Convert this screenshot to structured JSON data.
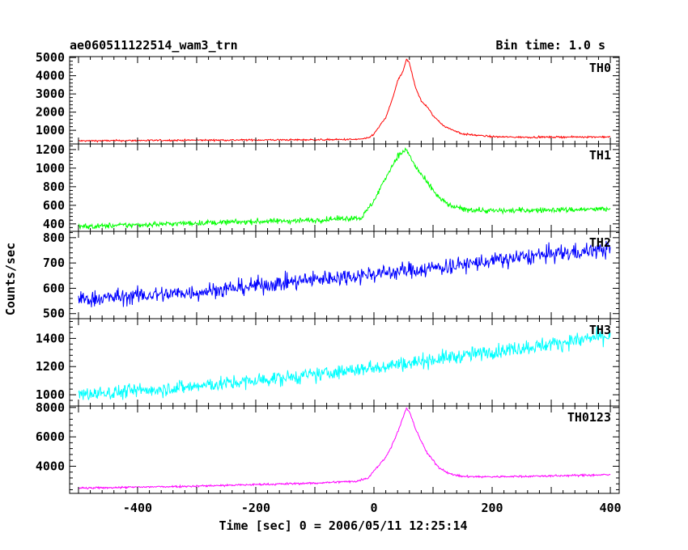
{
  "chart_data": {
    "type": "line",
    "title": "ae060511122514_wam3_trn",
    "bin_time_label": "Bin time: 1.0 s",
    "xlabel": "Time [sec] 0 = 2006/05/11 12:25:14",
    "ylabel": "Counts/sec",
    "xlim": [
      -515,
      415
    ],
    "xticks": [
      -400,
      -200,
      0,
      200,
      400
    ],
    "grid": false,
    "panels": [
      {
        "name": "TH0",
        "color": "#ff0000",
        "ylim": [
          250,
          5050
        ],
        "yticks": [
          1000,
          2000,
          3000,
          4000,
          5000
        ],
        "noise": 40,
        "x": [
          -500,
          -300,
          -100,
          -30,
          -10,
          0,
          20,
          30,
          40,
          50,
          55,
          60,
          70,
          80,
          90,
          100,
          120,
          150,
          200,
          250,
          300,
          400
        ],
        "y": [
          420,
          460,
          480,
          500,
          560,
          800,
          1700,
          2600,
          3700,
          4300,
          4900,
          4700,
          3400,
          2600,
          2300,
          1800,
          1200,
          800,
          650,
          620,
          630,
          640
        ]
      },
      {
        "name": "TH1",
        "color": "#00ff00",
        "ylim": [
          320,
          1260
        ],
        "yticks": [
          400,
          600,
          800,
          1000,
          1200
        ],
        "noise": 25,
        "x": [
          -500,
          -300,
          -100,
          -20,
          0,
          20,
          40,
          55,
          70,
          90,
          110,
          130,
          150,
          200,
          300,
          400
        ],
        "y": [
          370,
          410,
          440,
          470,
          650,
          900,
          1130,
          1200,
          1020,
          840,
          680,
          590,
          560,
          540,
          550,
          560
        ]
      },
      {
        "name": "TH2",
        "color": "#0000ff",
        "ylim": [
          480,
          825
        ],
        "yticks": [
          500,
          600,
          700,
          800
        ],
        "noise": 28,
        "x": [
          -500,
          -300,
          -100,
          100,
          300,
          400
        ],
        "y": [
          555,
          585,
          635,
          680,
          735,
          755
        ]
      },
      {
        "name": "TH3",
        "color": "#00ffff",
        "ylim": [
          920,
          1540
        ],
        "yticks": [
          1000,
          1200,
          1400
        ],
        "noise": 45,
        "x": [
          -500,
          -300,
          -100,
          100,
          300,
          400
        ],
        "y": [
          1000,
          1060,
          1140,
          1250,
          1360,
          1420
        ]
      },
      {
        "name": "TH0123",
        "color": "#ff00ff",
        "ylim": [
          2150,
          8100
        ],
        "yticks": [
          4000,
          6000,
          8000
        ],
        "noise": 60,
        "x": [
          -500,
          -300,
          -100,
          -30,
          -10,
          0,
          20,
          30,
          40,
          50,
          55,
          60,
          70,
          80,
          90,
          110,
          130,
          150,
          200,
          300,
          400
        ],
        "y": [
          2500,
          2650,
          2850,
          2980,
          3200,
          3700,
          4600,
          5400,
          6300,
          7400,
          7950,
          7700,
          6600,
          5700,
          4900,
          3900,
          3450,
          3300,
          3280,
          3340,
          3420
        ]
      }
    ]
  }
}
